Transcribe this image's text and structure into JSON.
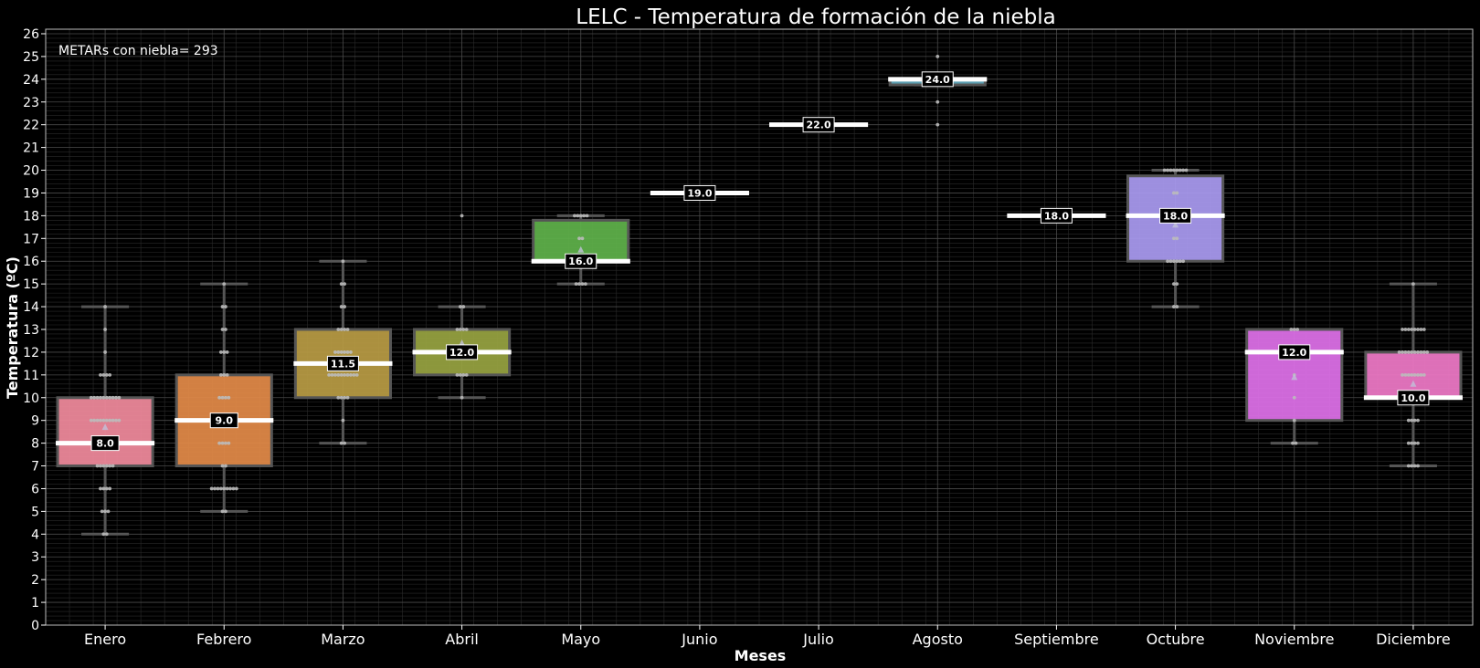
{
  "chart_data": {
    "type": "box",
    "title": "LELC - Temperatura de formación de la niebla",
    "xlabel": "Meses",
    "ylabel": "Temperatura (ºC)",
    "annotation": "METARs con niebla= 293",
    "ylim": [
      0,
      26.2
    ],
    "yticks": [
      0,
      1,
      2,
      3,
      4,
      5,
      6,
      7,
      8,
      9,
      10,
      11,
      12,
      13,
      14,
      15,
      16,
      17,
      18,
      19,
      20,
      21,
      22,
      23,
      24,
      25,
      26
    ],
    "grid": true,
    "categories": [
      "Enero",
      "Febrero",
      "Marzo",
      "Abril",
      "Mayo",
      "Junio",
      "Julio",
      "Agosto",
      "Septiembre",
      "Octubre",
      "Noviembre",
      "Diciembre"
    ],
    "colors": [
      "#f08a9c",
      "#e28a48",
      "#b89b44",
      "#97a241",
      "#5fb24a",
      "#4bb07f",
      "#4caf9e",
      "#62a9bd",
      "#6aa8dd",
      "#a99af0",
      "#de70e8",
      "#ee79c6"
    ],
    "boxes": [
      {
        "month": "Enero",
        "whisker_low": 4,
        "q1": 7,
        "median": 8,
        "q3": 10,
        "whisker_high": 14,
        "mean": 8.7,
        "median_label": "8.0",
        "points": [
          [
            4,
            2
          ],
          [
            5,
            3
          ],
          [
            6,
            4
          ],
          [
            7,
            6
          ],
          [
            8,
            4
          ],
          [
            9,
            10
          ],
          [
            10,
            10
          ],
          [
            11,
            4
          ],
          [
            12,
            1
          ],
          [
            13,
            1
          ],
          [
            14,
            1
          ]
        ]
      },
      {
        "month": "Febrero",
        "whisker_low": 5,
        "q1": 7,
        "median": 9,
        "q3": 11,
        "whisker_high": 15,
        "mean": 9.0,
        "median_label": "9.0",
        "points": [
          [
            5,
            2
          ],
          [
            6,
            9
          ],
          [
            7,
            2
          ],
          [
            8,
            4
          ],
          [
            9,
            5
          ],
          [
            10,
            4
          ],
          [
            11,
            3
          ],
          [
            12,
            3
          ],
          [
            13,
            2
          ],
          [
            14,
            2
          ],
          [
            15,
            1
          ]
        ]
      },
      {
        "month": "Marzo",
        "whisker_low": 8,
        "q1": 10,
        "median": 11.5,
        "q3": 13,
        "whisker_high": 16,
        "mean": 11.6,
        "median_label": "11.5",
        "points": [
          [
            8,
            2
          ],
          [
            9,
            1
          ],
          [
            10,
            4
          ],
          [
            11,
            10
          ],
          [
            12,
            6
          ],
          [
            13,
            4
          ],
          [
            14,
            2
          ],
          [
            15,
            2
          ],
          [
            16,
            1
          ]
        ]
      },
      {
        "month": "Abril",
        "whisker_low": 10,
        "q1": 11,
        "median": 12,
        "q3": 13,
        "whisker_high": 14,
        "mean": 12.4,
        "median_label": "12.0",
        "points": [
          [
            10,
            1
          ],
          [
            11,
            4
          ],
          [
            12,
            4
          ],
          [
            13,
            4
          ],
          [
            14,
            2
          ],
          [
            18,
            1
          ]
        ]
      },
      {
        "month": "Mayo",
        "whisker_low": 15,
        "q1": 16,
        "median": 16,
        "q3": 17.8,
        "whisker_high": 18,
        "mean": 16.5,
        "median_label": "16.0",
        "points": [
          [
            15,
            4
          ],
          [
            16,
            3
          ],
          [
            17,
            2
          ],
          [
            18,
            5
          ]
        ]
      },
      {
        "month": "Junio",
        "whisker_low": 19,
        "q1": 19,
        "median": 19,
        "q3": 19,
        "whisker_high": 19,
        "mean": 19,
        "median_label": "19.0",
        "points": [
          [
            19,
            1
          ]
        ]
      },
      {
        "month": "Julio",
        "whisker_low": 22,
        "q1": 22,
        "median": 22,
        "q3": 22,
        "whisker_high": 22,
        "mean": 22,
        "median_label": "22.0",
        "points": [
          [
            22,
            1
          ]
        ]
      },
      {
        "month": "Agosto",
        "whisker_low": 23.75,
        "q1": 23.75,
        "median": 24,
        "q3": 24,
        "whisker_high": 24,
        "mean": 23.8,
        "median_label": "24.0",
        "points": [
          [
            22,
            1
          ],
          [
            23,
            1
          ],
          [
            24,
            1
          ],
          [
            25,
            1
          ]
        ]
      },
      {
        "month": "Septiembre",
        "whisker_low": 18,
        "q1": 18,
        "median": 18,
        "q3": 18,
        "whisker_high": 18,
        "mean": 18,
        "median_label": "18.0",
        "points": [
          [
            18,
            1
          ]
        ]
      },
      {
        "month": "Octubre",
        "whisker_low": 14,
        "q1": 16,
        "median": 18,
        "q3": 19.75,
        "whisker_high": 20,
        "mean": 17.6,
        "median_label": "18.0",
        "points": [
          [
            14,
            2
          ],
          [
            15,
            2
          ],
          [
            16,
            6
          ],
          [
            17,
            2
          ],
          [
            18,
            3
          ],
          [
            19,
            2
          ],
          [
            20,
            8
          ]
        ]
      },
      {
        "month": "Noviembre",
        "whisker_low": 8,
        "q1": 9,
        "median": 12,
        "q3": 13,
        "whisker_high": 13,
        "mean": 10.9,
        "median_label": "12.0",
        "points": [
          [
            8,
            2
          ],
          [
            9,
            1
          ],
          [
            10,
            1
          ],
          [
            11,
            1
          ],
          [
            12,
            3
          ],
          [
            13,
            3
          ]
        ]
      },
      {
        "month": "Diciembre",
        "whisker_low": 7,
        "q1": 10,
        "median": 10,
        "q3": 12,
        "whisker_high": 15,
        "mean": 10.6,
        "median_label": "10.0",
        "points": [
          [
            7,
            4
          ],
          [
            8,
            4
          ],
          [
            9,
            4
          ],
          [
            10,
            5
          ],
          [
            11,
            8
          ],
          [
            12,
            10
          ],
          [
            13,
            8
          ],
          [
            15,
            1
          ]
        ]
      }
    ]
  }
}
